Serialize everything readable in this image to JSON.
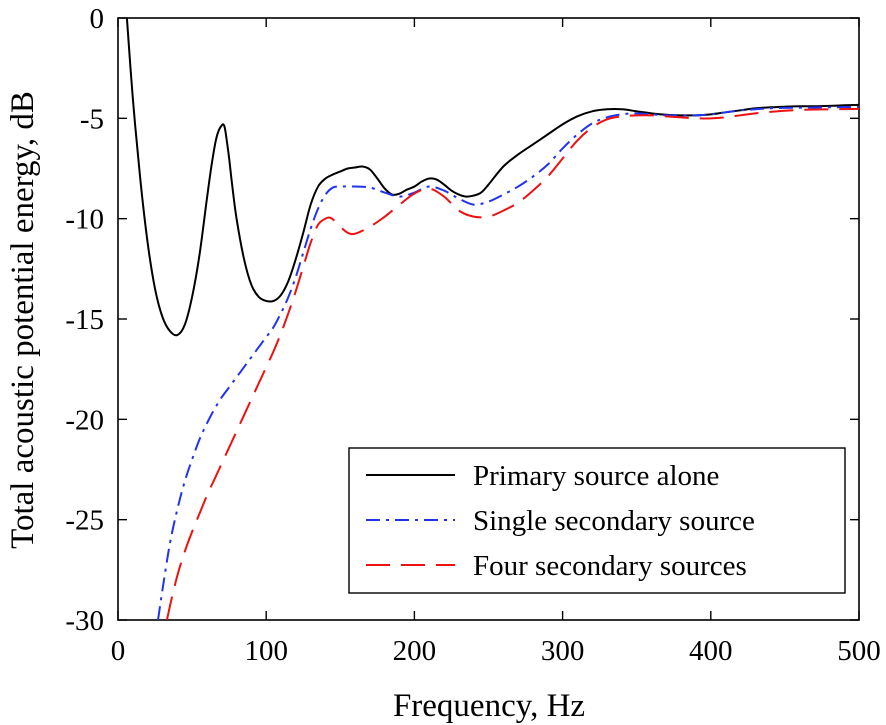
{
  "chart_data": {
    "type": "line",
    "title": "",
    "xlabel": "Frequency, Hz",
    "ylabel": "Total acoustic potential energy, dB",
    "xlim": [
      0,
      500
    ],
    "ylim": [
      -30,
      0
    ],
    "xticks": [
      0,
      100,
      200,
      300,
      400,
      500
    ],
    "yticks": [
      0,
      -5,
      -10,
      -15,
      -20,
      -25,
      -30
    ],
    "xtick_labels": [
      "0",
      "100",
      "200",
      "300",
      "400",
      "500"
    ],
    "ytick_labels": [
      "0",
      "-5",
      "-10",
      "-15",
      "-20",
      "-25",
      "-30"
    ],
    "legend_position": "bottom-right",
    "series": [
      {
        "name": "Primary source alone",
        "color": "#000000",
        "style": "solid",
        "x": [
          6,
          10,
          15,
          20,
          25,
          30,
          35,
          40,
          45,
          50,
          55,
          60,
          63,
          66,
          68,
          70,
          71,
          72,
          73,
          75,
          77,
          80,
          85,
          90,
          95,
          100,
          105,
          110,
          115,
          120,
          125,
          130,
          135,
          140,
          145,
          150,
          155,
          160,
          165,
          170,
          175,
          180,
          185,
          190,
          195,
          200,
          205,
          210,
          215,
          220,
          225,
          230,
          235,
          240,
          245,
          250,
          260,
          270,
          280,
          290,
          300,
          310,
          320,
          330,
          340,
          350,
          360,
          370,
          380,
          390,
          400,
          410,
          420,
          430,
          440,
          450,
          460,
          470,
          480,
          490,
          500
        ],
        "y": [
          0,
          -4,
          -8,
          -11.2,
          -13.5,
          -14.9,
          -15.6,
          -15.8,
          -15.3,
          -13.9,
          -11.8,
          -9,
          -7.4,
          -6.1,
          -5.6,
          -5.35,
          -5.3,
          -5.45,
          -5.9,
          -7,
          -8.3,
          -10,
          -12,
          -13.3,
          -13.9,
          -14.1,
          -14.1,
          -13.8,
          -13.1,
          -12,
          -10.7,
          -9.3,
          -8.4,
          -8,
          -7.8,
          -7.65,
          -7.5,
          -7.45,
          -7.4,
          -7.55,
          -8,
          -8.5,
          -8.8,
          -8.75,
          -8.55,
          -8.4,
          -8.15,
          -8,
          -8.05,
          -8.3,
          -8.6,
          -8.8,
          -8.9,
          -8.85,
          -8.7,
          -8.3,
          -7.4,
          -6.8,
          -6.3,
          -5.8,
          -5.3,
          -4.9,
          -4.65,
          -4.55,
          -4.55,
          -4.65,
          -4.75,
          -4.82,
          -4.85,
          -4.85,
          -4.8,
          -4.7,
          -4.6,
          -4.5,
          -4.45,
          -4.42,
          -4.4,
          -4.4,
          -4.38,
          -4.35,
          -4.33
        ]
      },
      {
        "name": "Single secondary source",
        "color": "#2233ee",
        "style": "dashdot",
        "x": [
          27,
          30,
          35,
          40,
          45,
          50,
          55,
          60,
          65,
          70,
          75,
          80,
          85,
          90,
          95,
          100,
          105,
          110,
          115,
          120,
          125,
          130,
          135,
          140,
          145,
          150,
          160,
          170,
          180,
          190,
          200,
          210,
          220,
          230,
          240,
          250,
          260,
          270,
          280,
          290,
          300,
          310,
          320,
          330,
          340,
          350,
          360,
          370,
          380,
          390,
          400,
          410,
          420,
          430,
          440,
          450,
          460,
          470,
          480,
          490,
          500
        ],
        "y": [
          -30,
          -28.5,
          -26.2,
          -24.5,
          -23.1,
          -22,
          -21,
          -20.2,
          -19.5,
          -18.9,
          -18.4,
          -17.9,
          -17.4,
          -16.9,
          -16.4,
          -15.9,
          -15.4,
          -14.7,
          -13.9,
          -12.9,
          -11.7,
          -10.5,
          -9.5,
          -8.8,
          -8.45,
          -8.4,
          -8.4,
          -8.45,
          -8.7,
          -8.9,
          -8.7,
          -8.4,
          -8.6,
          -9,
          -9.3,
          -9.15,
          -8.8,
          -8.4,
          -7.9,
          -7.3,
          -6.5,
          -5.8,
          -5.25,
          -4.95,
          -4.8,
          -4.75,
          -4.8,
          -4.85,
          -4.85,
          -4.85,
          -4.8,
          -4.7,
          -4.6,
          -4.55,
          -4.5,
          -4.48,
          -4.47,
          -4.46,
          -4.45,
          -4.44,
          -4.43
        ]
      },
      {
        "name": "Four secondary sources",
        "color": "#ee1111",
        "style": "dashed",
        "x": [
          33,
          36,
          40,
          45,
          50,
          55,
          60,
          65,
          70,
          75,
          80,
          85,
          90,
          95,
          100,
          105,
          110,
          115,
          120,
          125,
          130,
          135,
          140,
          143,
          146,
          150,
          155,
          160,
          170,
          180,
          190,
          200,
          210,
          220,
          230,
          240,
          250,
          260,
          270,
          280,
          290,
          300,
          310,
          320,
          330,
          340,
          350,
          360,
          370,
          380,
          390,
          400,
          410,
          420,
          430,
          440,
          450,
          460,
          470,
          480,
          490,
          500
        ],
        "y": [
          -30,
          -29,
          -27.8,
          -26.6,
          -25.6,
          -24.7,
          -23.8,
          -23,
          -22.2,
          -21.4,
          -20.6,
          -19.8,
          -19,
          -18.2,
          -17.4,
          -16.6,
          -15.7,
          -14.7,
          -13.6,
          -12.4,
          -11.2,
          -10.3,
          -10,
          -9.95,
          -10.1,
          -10.4,
          -10.7,
          -10.75,
          -10.4,
          -9.9,
          -9.3,
          -8.75,
          -8.5,
          -8.9,
          -9.6,
          -9.9,
          -9.9,
          -9.6,
          -9.2,
          -8.6,
          -7.9,
          -7,
          -6.1,
          -5.45,
          -5.05,
          -4.9,
          -4.85,
          -4.85,
          -4.9,
          -4.95,
          -5,
          -5,
          -4.95,
          -4.85,
          -4.75,
          -4.68,
          -4.62,
          -4.58,
          -4.56,
          -4.55,
          -4.54,
          -4.53
        ]
      }
    ]
  }
}
